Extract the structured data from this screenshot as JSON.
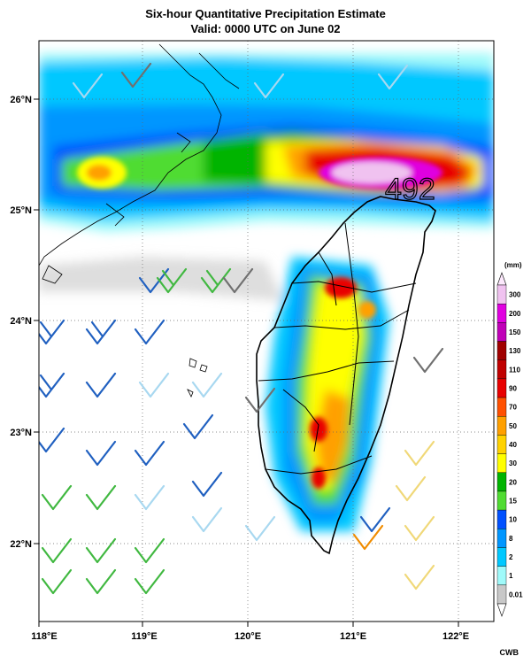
{
  "header": {
    "title": "Six-hour Quantitative Precipitation Estimate",
    "subtitle": "Valid: 0000 UTC on June 02"
  },
  "map": {
    "lon_labels": [
      "118°E",
      "119°E",
      "120°E",
      "121°E",
      "122°E"
    ],
    "lat_labels": [
      "26°N",
      "25°N",
      "24°N",
      "23°N",
      "22°N"
    ],
    "max_annotation": "492"
  },
  "legend": {
    "unit": "(mm)",
    "levels": [
      "300",
      "200",
      "150",
      "130",
      "110",
      "90",
      "70",
      "50",
      "40",
      "30",
      "20",
      "15",
      "10",
      "8",
      "2",
      "1",
      "0.01"
    ],
    "colors": [
      "#f0c2f0",
      "#e000e0",
      "#c000b8",
      "#a00000",
      "#c00000",
      "#e80000",
      "#ff5000",
      "#ffa000",
      "#ffd200",
      "#ffff00",
      "#00b400",
      "#50dc32",
      "#0050ff",
      "#0096ff",
      "#00c8ff",
      "#a0fafa",
      "#c8c8c8"
    ]
  },
  "credit": "CWB"
}
